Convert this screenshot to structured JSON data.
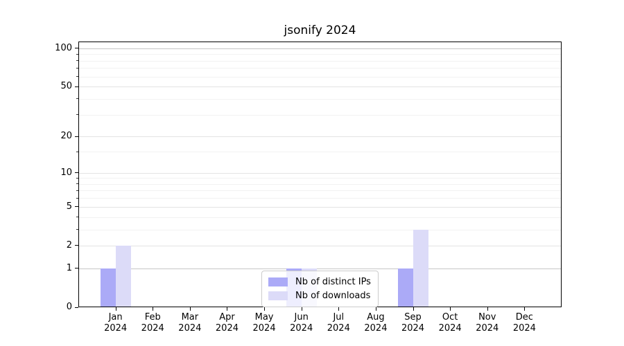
{
  "chart_data": {
    "type": "bar",
    "title": "jsonify 2024",
    "categories": [
      "Jan",
      "Feb",
      "Mar",
      "Apr",
      "May",
      "Jun",
      "Jul",
      "Aug",
      "Sep",
      "Oct",
      "Nov",
      "Dec"
    ],
    "category_year": "2024",
    "series": [
      {
        "name": "Nb of distinct IPs",
        "color": "#abaaf7",
        "values": [
          1,
          0,
          0,
          0,
          0,
          1,
          0,
          0,
          1,
          0,
          0,
          0
        ]
      },
      {
        "name": "Nb of downloads",
        "color": "#dcdbf8",
        "values": [
          2,
          0,
          0,
          0,
          0,
          1,
          0,
          0,
          3,
          0,
          0,
          0
        ]
      }
    ],
    "xlabel": "",
    "ylabel": "",
    "yscale": "log1p",
    "ylim": [
      0,
      113
    ],
    "yticks": [
      0,
      1,
      2,
      5,
      10,
      20,
      50,
      100
    ],
    "yticks_minor": [
      3,
      4,
      6,
      7,
      8,
      9,
      15,
      30,
      40,
      60,
      70,
      80,
      90
    ],
    "grid": "on",
    "gridline_color_major": "#e3e3e3",
    "gridline_color_minor": "#f2f2f2",
    "gridline_color_emphasis": "#c6c6c6",
    "emphasis_gridlines": [
      1,
      100
    ],
    "legend_position": "lower-center",
    "axis_color": "#000000"
  }
}
